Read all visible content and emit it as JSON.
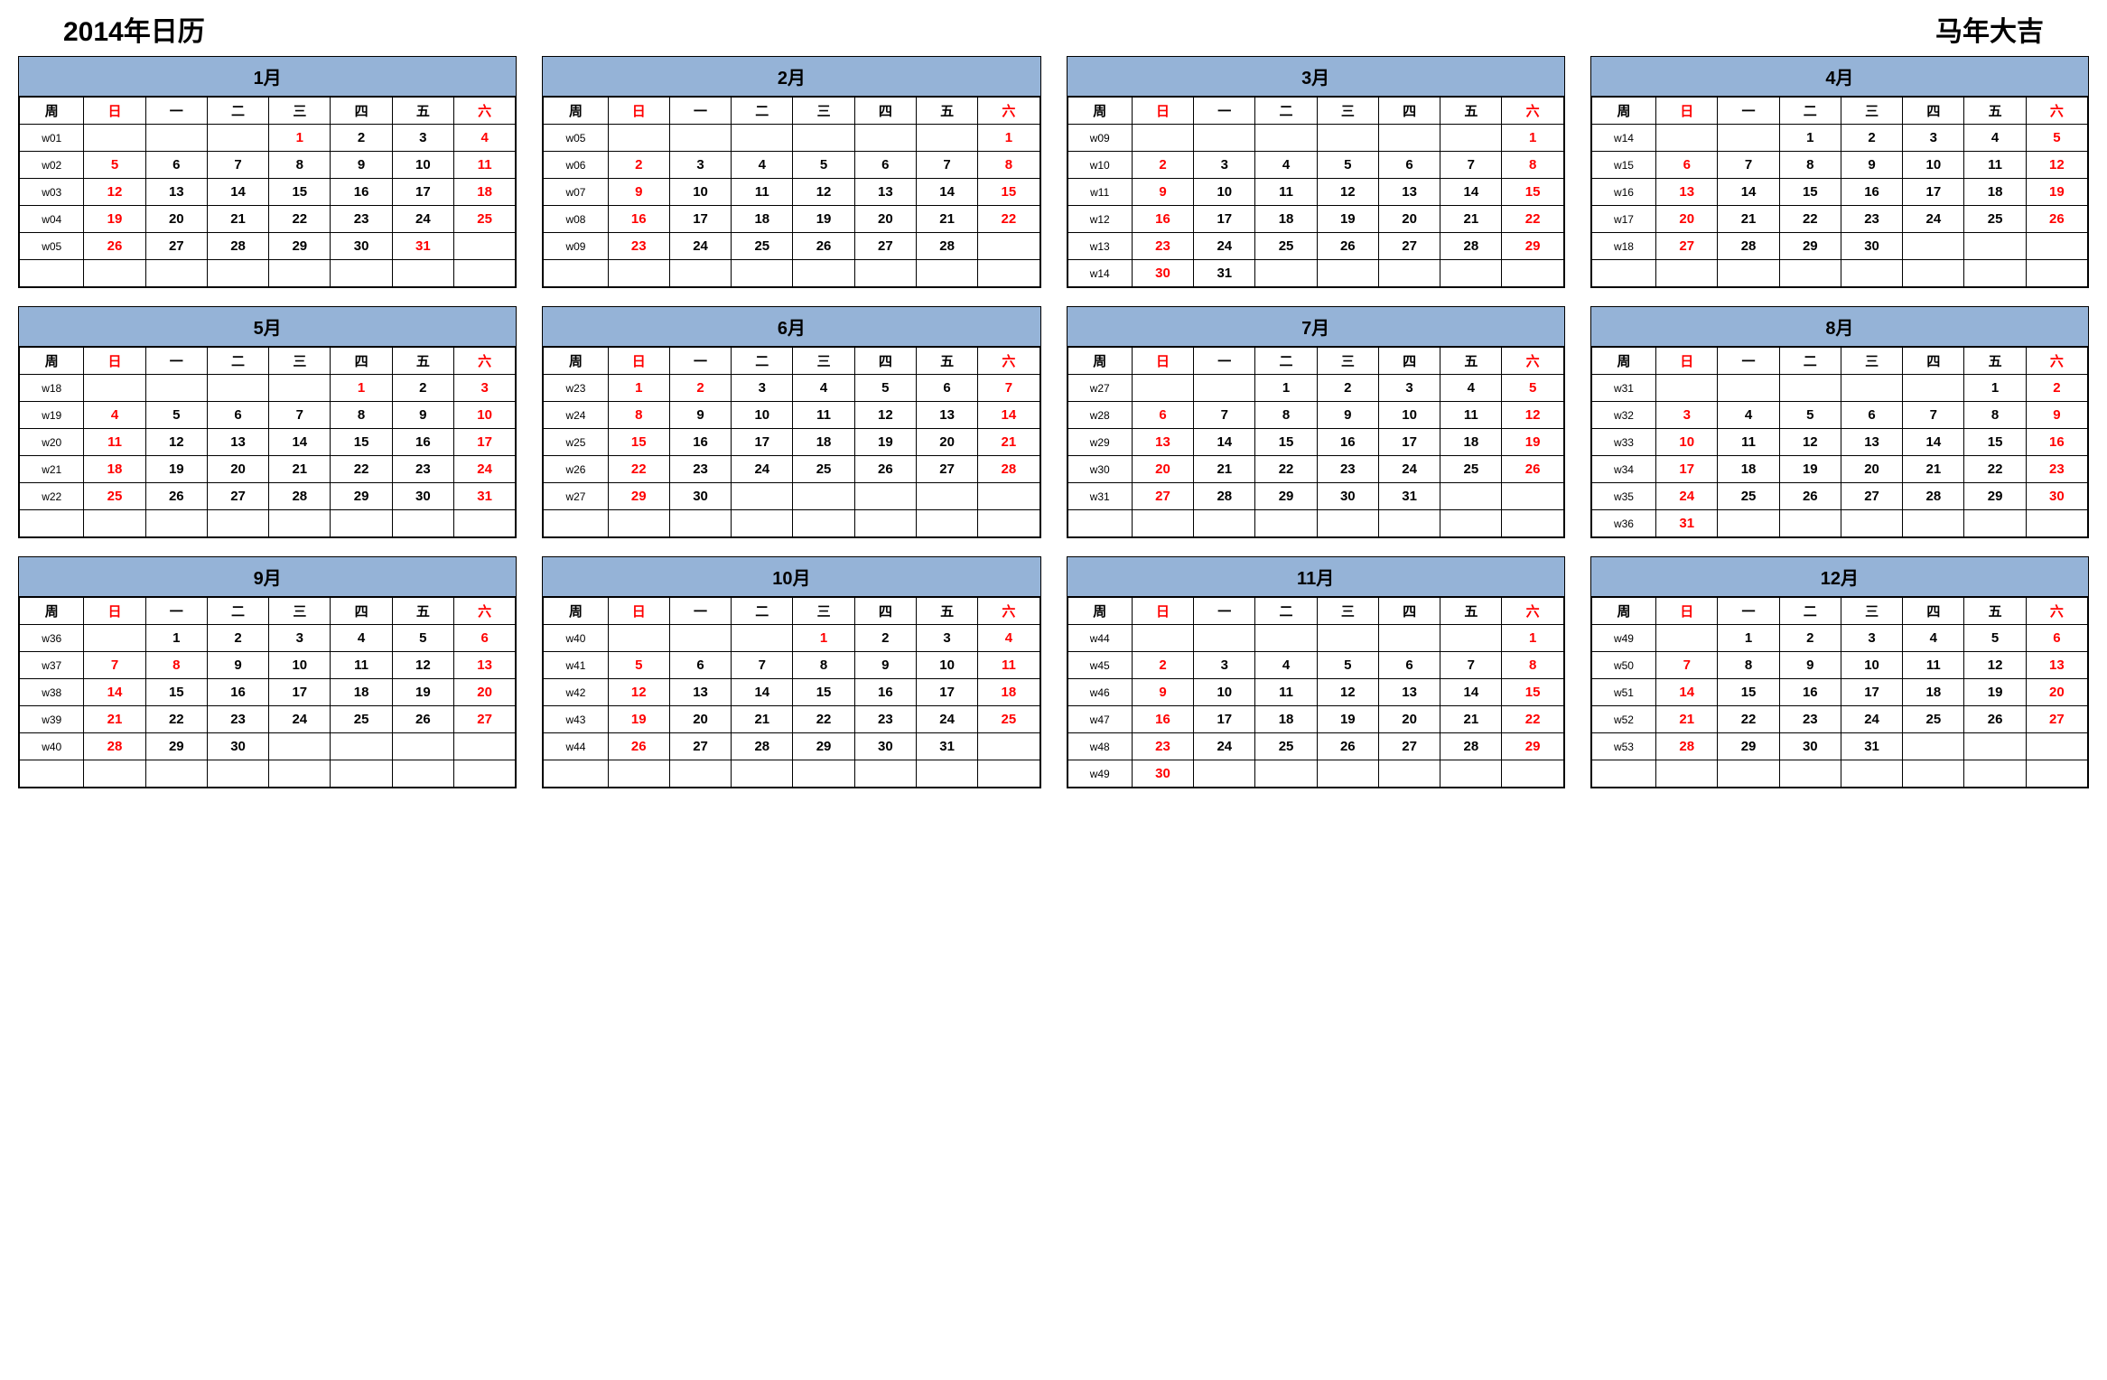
{
  "title_left": "2014年日历",
  "title_right": "马年大吉",
  "styling": {
    "header_bg": "#95b3d7",
    "border_color": "#000000",
    "text_color": "#000000",
    "weekend_color": "#ff0000",
    "background": "#ffffff",
    "title_fontsize": 30,
    "month_title_fontsize": 20,
    "cell_fontsize": 15,
    "week_fontsize": 12,
    "grid_cols": 4,
    "grid_rows": 3,
    "rows_per_month": 6
  },
  "week_header": [
    "周",
    "日",
    "一",
    "二",
    "三",
    "四",
    "五",
    "六"
  ],
  "weekend_header_indices": [
    1,
    7
  ],
  "months": [
    {
      "name": "1月",
      "rows": [
        [
          "w01",
          "",
          "",
          "",
          "1",
          "2",
          "3",
          "4"
        ],
        [
          "w02",
          "5",
          "6",
          "7",
          "8",
          "9",
          "10",
          "11"
        ],
        [
          "w03",
          "12",
          "13",
          "14",
          "15",
          "16",
          "17",
          "18"
        ],
        [
          "w04",
          "19",
          "20",
          "21",
          "22",
          "23",
          "24",
          "25"
        ],
        [
          "w05",
          "26",
          "27",
          "28",
          "29",
          "30",
          "31",
          ""
        ],
        [
          "",
          "",
          "",
          "",
          "",
          "",
          "",
          ""
        ]
      ],
      "red_extra": [
        [
          0,
          4
        ],
        [
          4,
          6
        ]
      ]
    },
    {
      "name": "2月",
      "rows": [
        [
          "w05",
          "",
          "",
          "",
          "",
          "",
          "",
          "1"
        ],
        [
          "w06",
          "2",
          "3",
          "4",
          "5",
          "6",
          "7",
          "8"
        ],
        [
          "w07",
          "9",
          "10",
          "11",
          "12",
          "13",
          "14",
          "15"
        ],
        [
          "w08",
          "16",
          "17",
          "18",
          "19",
          "20",
          "21",
          "22"
        ],
        [
          "w09",
          "23",
          "24",
          "25",
          "26",
          "27",
          "28",
          ""
        ],
        [
          "",
          "",
          "",
          "",
          "",
          "",
          "",
          ""
        ]
      ],
      "red_extra": []
    },
    {
      "name": "3月",
      "rows": [
        [
          "w09",
          "",
          "",
          "",
          "",
          "",
          "",
          "1"
        ],
        [
          "w10",
          "2",
          "3",
          "4",
          "5",
          "6",
          "7",
          "8"
        ],
        [
          "w11",
          "9",
          "10",
          "11",
          "12",
          "13",
          "14",
          "15"
        ],
        [
          "w12",
          "16",
          "17",
          "18",
          "19",
          "20",
          "21",
          "22"
        ],
        [
          "w13",
          "23",
          "24",
          "25",
          "26",
          "27",
          "28",
          "29"
        ],
        [
          "w14",
          "30",
          "31",
          "",
          "",
          "",
          "",
          ""
        ]
      ],
      "red_extra": []
    },
    {
      "name": "4月",
      "rows": [
        [
          "w14",
          "",
          "",
          "1",
          "2",
          "3",
          "4",
          "5"
        ],
        [
          "w15",
          "6",
          "7",
          "8",
          "9",
          "10",
          "11",
          "12"
        ],
        [
          "w16",
          "13",
          "14",
          "15",
          "16",
          "17",
          "18",
          "19"
        ],
        [
          "w17",
          "20",
          "21",
          "22",
          "23",
          "24",
          "25",
          "26"
        ],
        [
          "w18",
          "27",
          "28",
          "29",
          "30",
          "",
          "",
          ""
        ],
        [
          "",
          "",
          "",
          "",
          "",
          "",
          "",
          ""
        ]
      ],
      "red_extra": []
    },
    {
      "name": "5月",
      "rows": [
        [
          "w18",
          "",
          "",
          "",
          "",
          "1",
          "2",
          "3"
        ],
        [
          "w19",
          "4",
          "5",
          "6",
          "7",
          "8",
          "9",
          "10"
        ],
        [
          "w20",
          "11",
          "12",
          "13",
          "14",
          "15",
          "16",
          "17"
        ],
        [
          "w21",
          "18",
          "19",
          "20",
          "21",
          "22",
          "23",
          "24"
        ],
        [
          "w22",
          "25",
          "26",
          "27",
          "28",
          "29",
          "30",
          "31"
        ],
        [
          "",
          "",
          "",
          "",
          "",
          "",
          "",
          ""
        ]
      ],
      "red_extra": [
        [
          0,
          5
        ]
      ]
    },
    {
      "name": "6月",
      "rows": [
        [
          "w23",
          "1",
          "2",
          "3",
          "4",
          "5",
          "6",
          "7"
        ],
        [
          "w24",
          "8",
          "9",
          "10",
          "11",
          "12",
          "13",
          "14"
        ],
        [
          "w25",
          "15",
          "16",
          "17",
          "18",
          "19",
          "20",
          "21"
        ],
        [
          "w26",
          "22",
          "23",
          "24",
          "25",
          "26",
          "27",
          "28"
        ],
        [
          "w27",
          "29",
          "30",
          "",
          "",
          "",
          "",
          ""
        ],
        [
          "",
          "",
          "",
          "",
          "",
          "",
          "",
          ""
        ]
      ],
      "red_extra": [
        [
          0,
          2
        ]
      ]
    },
    {
      "name": "7月",
      "rows": [
        [
          "w27",
          "",
          "",
          "1",
          "2",
          "3",
          "4",
          "5"
        ],
        [
          "w28",
          "6",
          "7",
          "8",
          "9",
          "10",
          "11",
          "12"
        ],
        [
          "w29",
          "13",
          "14",
          "15",
          "16",
          "17",
          "18",
          "19"
        ],
        [
          "w30",
          "20",
          "21",
          "22",
          "23",
          "24",
          "25",
          "26"
        ],
        [
          "w31",
          "27",
          "28",
          "29",
          "30",
          "31",
          "",
          ""
        ],
        [
          "",
          "",
          "",
          "",
          "",
          "",
          "",
          ""
        ]
      ],
      "red_extra": []
    },
    {
      "name": "8月",
      "rows": [
        [
          "w31",
          "",
          "",
          "",
          "",
          "",
          "1",
          "2"
        ],
        [
          "w32",
          "3",
          "4",
          "5",
          "6",
          "7",
          "8",
          "9"
        ],
        [
          "w33",
          "10",
          "11",
          "12",
          "13",
          "14",
          "15",
          "16"
        ],
        [
          "w34",
          "17",
          "18",
          "19",
          "20",
          "21",
          "22",
          "23"
        ],
        [
          "w35",
          "24",
          "25",
          "26",
          "27",
          "28",
          "29",
          "30"
        ],
        [
          "w36",
          "31",
          "",
          "",
          "",
          "",
          "",
          ""
        ]
      ],
      "red_extra": []
    },
    {
      "name": "9月",
      "rows": [
        [
          "w36",
          "",
          "1",
          "2",
          "3",
          "4",
          "5",
          "6"
        ],
        [
          "w37",
          "7",
          "8",
          "9",
          "10",
          "11",
          "12",
          "13"
        ],
        [
          "w38",
          "14",
          "15",
          "16",
          "17",
          "18",
          "19",
          "20"
        ],
        [
          "w39",
          "21",
          "22",
          "23",
          "24",
          "25",
          "26",
          "27"
        ],
        [
          "w40",
          "28",
          "29",
          "30",
          "",
          "",
          "",
          ""
        ],
        [
          "",
          "",
          "",
          "",
          "",
          "",
          "",
          ""
        ]
      ],
      "red_extra": [
        [
          1,
          2
        ]
      ]
    },
    {
      "name": "10月",
      "rows": [
        [
          "w40",
          "",
          "",
          "",
          "1",
          "2",
          "3",
          "4"
        ],
        [
          "w41",
          "5",
          "6",
          "7",
          "8",
          "9",
          "10",
          "11"
        ],
        [
          "w42",
          "12",
          "13",
          "14",
          "15",
          "16",
          "17",
          "18"
        ],
        [
          "w43",
          "19",
          "20",
          "21",
          "22",
          "23",
          "24",
          "25"
        ],
        [
          "w44",
          "26",
          "27",
          "28",
          "29",
          "30",
          "31",
          ""
        ],
        [
          "",
          "",
          "",
          "",
          "",
          "",
          "",
          ""
        ]
      ],
      "red_extra": [
        [
          0,
          4
        ]
      ]
    },
    {
      "name": "11月",
      "rows": [
        [
          "w44",
          "",
          "",
          "",
          "",
          "",
          "",
          "1"
        ],
        [
          "w45",
          "2",
          "3",
          "4",
          "5",
          "6",
          "7",
          "8"
        ],
        [
          "w46",
          "9",
          "10",
          "11",
          "12",
          "13",
          "14",
          "15"
        ],
        [
          "w47",
          "16",
          "17",
          "18",
          "19",
          "20",
          "21",
          "22"
        ],
        [
          "w48",
          "23",
          "24",
          "25",
          "26",
          "27",
          "28",
          "29"
        ],
        [
          "w49",
          "30",
          "",
          "",
          "",
          "",
          "",
          ""
        ]
      ],
      "red_extra": []
    },
    {
      "name": "12月",
      "rows": [
        [
          "w49",
          "",
          "1",
          "2",
          "3",
          "4",
          "5",
          "6"
        ],
        [
          "w50",
          "7",
          "8",
          "9",
          "10",
          "11",
          "12",
          "13"
        ],
        [
          "w51",
          "14",
          "15",
          "16",
          "17",
          "18",
          "19",
          "20"
        ],
        [
          "w52",
          "21",
          "22",
          "23",
          "24",
          "25",
          "26",
          "27"
        ],
        [
          "w53",
          "28",
          "29",
          "30",
          "31",
          "",
          "",
          ""
        ],
        [
          "",
          "",
          "",
          "",
          "",
          "",
          "",
          ""
        ]
      ],
      "red_extra": []
    }
  ]
}
